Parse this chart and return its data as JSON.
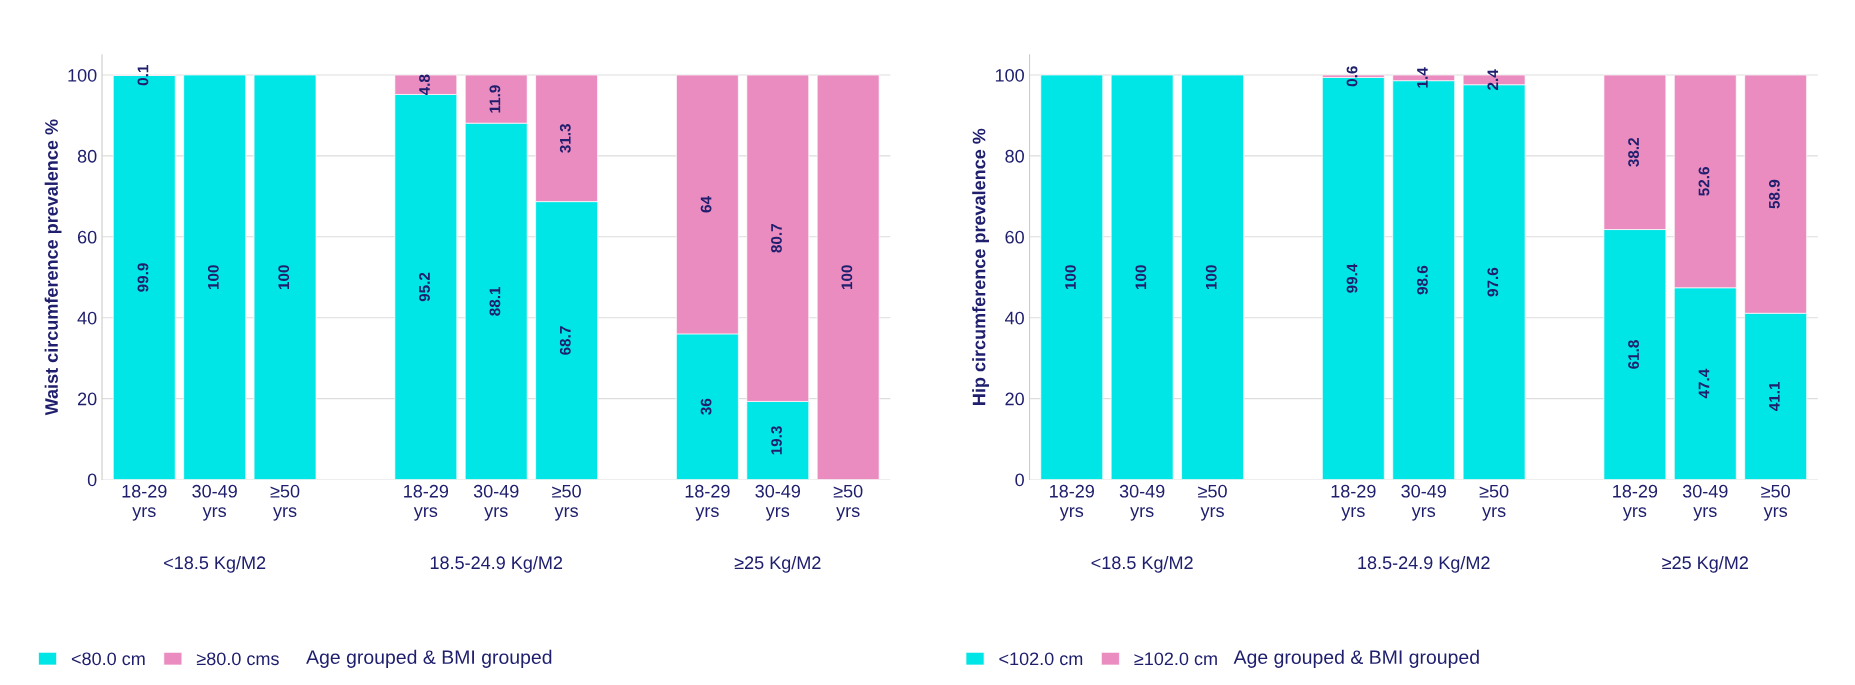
{
  "chart_data": [
    {
      "type": "bar",
      "stacked": true,
      "ylabel": "Waist circumference prevalence %",
      "xlabel": "Age grouped & BMI grouped",
      "categories": [
        "18-29\nyrs",
        "30-49\nyrs",
        "≥50\nyrs",
        null,
        "18-29\nyrs",
        "30-49\nyrs",
        "≥50\nyrs",
        null,
        "18-29\nyrs",
        "30-49\nyrs",
        "≥50\nyrs"
      ],
      "series": [
        {
          "name": "<80.0 cm",
          "color": "#00e5e5",
          "values": [
            99.9,
            100,
            100,
            null,
            95.2,
            88.1,
            68.7,
            null,
            36,
            19.3,
            null
          ]
        },
        {
          "name": "≥80.0 cms",
          "color": "#ea8cc0",
          "values": [
            0.1,
            null,
            null,
            null,
            4.8,
            11.9,
            31.3,
            null,
            64,
            80.7,
            100
          ]
        }
      ],
      "annotations": [
        "<18.5 Kg/M2",
        "18.5-24.9 Kg/M2",
        "≥25 Kg/M2"
      ],
      "ylim": [
        0,
        105
      ],
      "yticks": [
        0,
        20,
        40,
        60,
        80,
        100
      ],
      "grid": "y",
      "legend": "bottom left",
      "data_labels": true
    },
    {
      "type": "bar",
      "stacked": true,
      "ylabel": "Hip circumference prevalence %",
      "xlabel": "Age grouped & BMI grouped",
      "categories": [
        "18-29\nyrs",
        "30-49\nyrs",
        "≥50\nyrs",
        null,
        "18-29\nyrs",
        "30-49\nyrs",
        "≥50\nyrs",
        null,
        "18-29\nyrs",
        "30-49\nyrs",
        "≥50\nyrs"
      ],
      "series": [
        {
          "name": "<102.0 cm",
          "color": "#00e5e5",
          "values": [
            100,
            100,
            100,
            null,
            99.4,
            98.6,
            97.6,
            null,
            61.8,
            47.4,
            41.1
          ]
        },
        {
          "name": "≥102.0 cm",
          "color": "#ea8cc0",
          "values": [
            null,
            null,
            null,
            null,
            0.6,
            1.4,
            2.4,
            null,
            38.2,
            52.6,
            58.9
          ]
        }
      ],
      "annotations": [
        "<18.5 Kg/M2",
        "18.5-24.9 Kg/M2",
        "≥25 Kg/M2"
      ],
      "ylim": [
        0,
        105
      ],
      "yticks": [
        0,
        20,
        40,
        60,
        80,
        100
      ],
      "grid": "y",
      "legend": "bottom left",
      "data_labels": true
    }
  ]
}
